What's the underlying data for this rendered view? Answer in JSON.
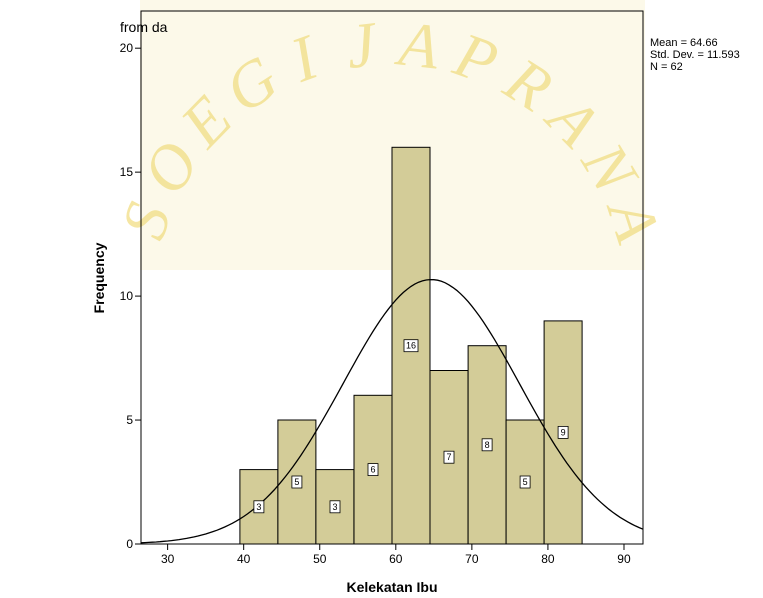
{
  "page_note": "from da",
  "watermark": {
    "letters": [
      "S",
      "O",
      "E",
      "G",
      "I",
      "J",
      "A",
      "P",
      "R",
      "A",
      "N",
      "A"
    ],
    "color": "#f1de84"
  },
  "chart_data": {
    "type": "bar",
    "title": "",
    "xlabel": "Kelekatan Ibu",
    "ylabel": "Frequency",
    "xlim": [
      26.5,
      92.5
    ],
    "ylim": [
      0,
      21.5
    ],
    "x_ticks": [
      30,
      40,
      50,
      60,
      70,
      80,
      90
    ],
    "y_ticks": [
      0,
      5,
      10,
      15,
      20
    ],
    "grid": false,
    "bins": [
      {
        "start": 39.5,
        "end": 44.5,
        "count": 3
      },
      {
        "start": 44.5,
        "end": 49.5,
        "count": 5
      },
      {
        "start": 49.5,
        "end": 54.5,
        "count": 3
      },
      {
        "start": 54.5,
        "end": 59.5,
        "count": 6
      },
      {
        "start": 59.5,
        "end": 64.5,
        "count": 16
      },
      {
        "start": 64.5,
        "end": 69.5,
        "count": 7
      },
      {
        "start": 69.5,
        "end": 74.5,
        "count": 8
      },
      {
        "start": 74.5,
        "end": 79.5,
        "count": 5
      },
      {
        "start": 79.5,
        "end": 84.5,
        "count": 9
      }
    ],
    "normal_curve": {
      "mean": 64.66,
      "std": 11.593,
      "n": 62,
      "bin_width": 5
    },
    "stats": {
      "mean_label": "Mean = 64.66",
      "std_label": "Std. Dev. = 11.593",
      "n_label": "N = 62"
    },
    "colors": {
      "bar_fill": "#d3cc98",
      "bar_stroke": "#000000",
      "curve": "#000000",
      "plot_bg": "#ffffff"
    }
  }
}
